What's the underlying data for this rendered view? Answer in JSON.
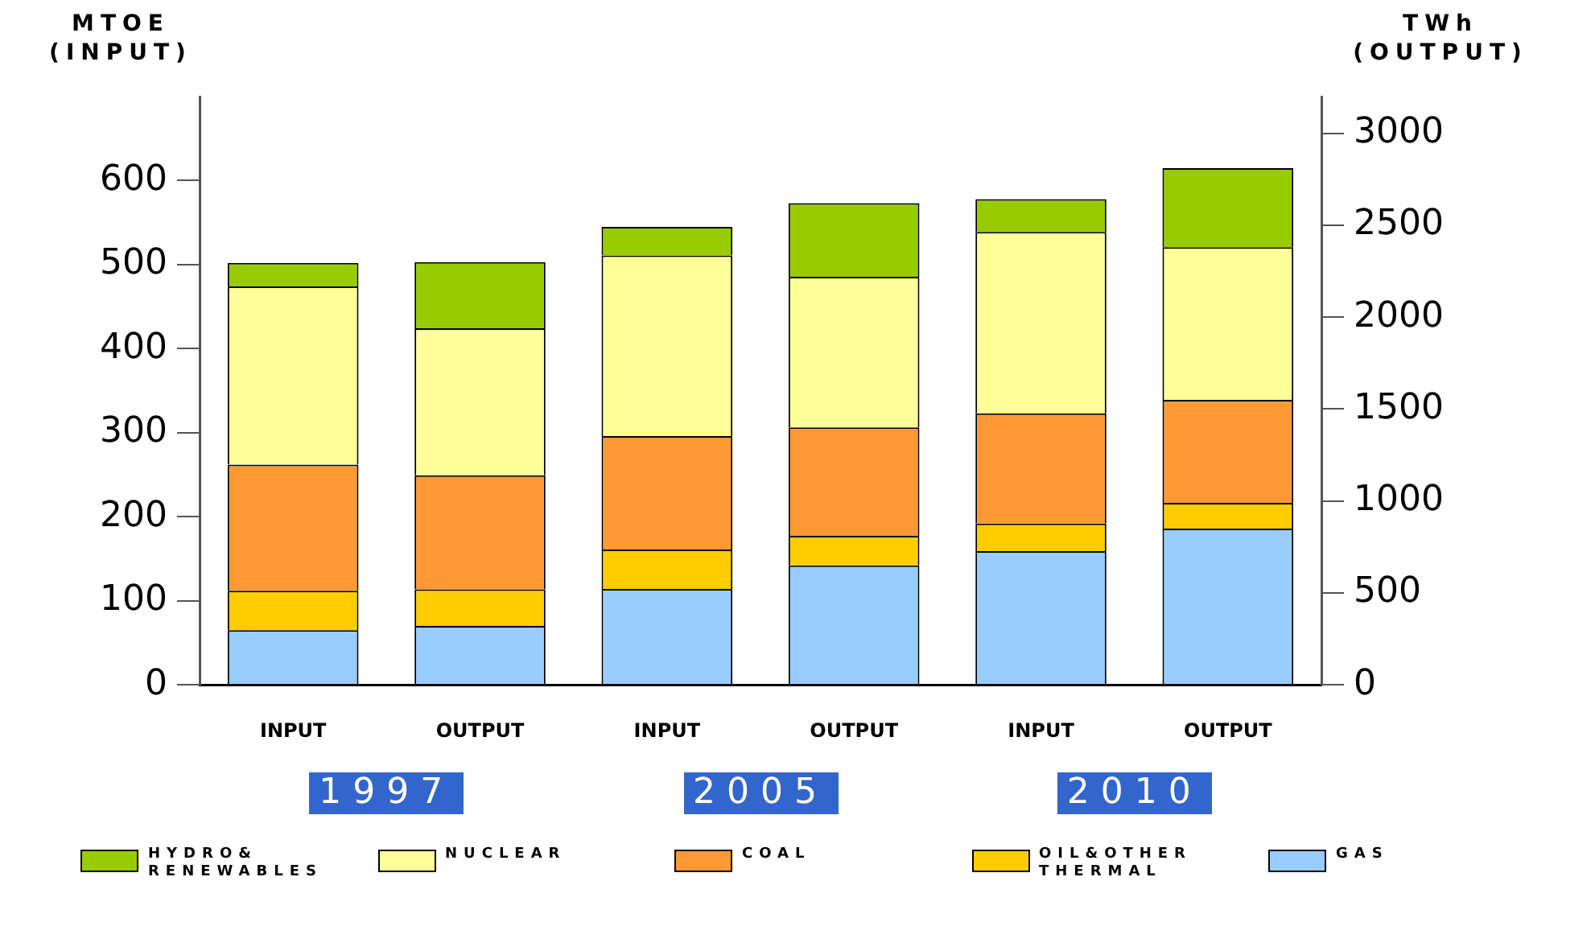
{
  "chart_data": {
    "type": "bar",
    "stacked": true,
    "ylabel": "MTOE (INPUT)",
    "y2label": "TWh (OUTPUT)",
    "categories": [
      "INPUT",
      "OUTPUT",
      "INPUT",
      "OUTPUT",
      "INPUT",
      "OUTPUT"
    ],
    "series": [
      {
        "name": "GAS",
        "color": "#99ccff",
        "values": [
          65,
          null,
          114,
          null,
          159,
          null
        ]
      },
      {
        "name": "OIL&OTHER THERMAL",
        "color": "#ffcc00",
        "values": [
          47,
          null,
          47,
          null,
          33,
          null
        ]
      },
      {
        "name": "COAL",
        "color": "#ff9933",
        "values": [
          150,
          null,
          135,
          null,
          131,
          null
        ]
      },
      {
        "name": "NUCLEAR",
        "color": "#ffff99",
        "values": [
          212,
          null,
          215,
          null,
          216,
          null
        ]
      },
      {
        "name": "HYDRO& RENEWABLES",
        "color": "#99cc00",
        "values": [
          28,
          null,
          34,
          null,
          39,
          null
        ]
      },
      {
        "color": "#99ccff",
        "axis": "y2",
        "values": [
          null,
          320,
          null,
          650,
          null,
          850
        ]
      },
      {
        "color": "#ffcc00",
        "axis": "y2",
        "values": [
          null,
          200,
          null,
          160,
          null,
          140
        ]
      },
      {
        "color": "#ff9933",
        "axis": "y2",
        "values": [
          null,
          620,
          null,
          590,
          null,
          560
        ]
      },
      {
        "color": "#ffff99",
        "axis": "y2",
        "values": [
          null,
          800,
          null,
          820,
          null,
          830
        ]
      },
      {
        "color": "#99cc00",
        "axis": "y2",
        "values": [
          null,
          360,
          null,
          400,
          null,
          430
        ]
      }
    ],
    "ylim": [
      0,
      700
    ],
    "yticks": [
      0,
      100,
      200,
      300,
      400,
      500,
      600
    ],
    "y2lim": [
      0,
      3200
    ],
    "y2ticks": [
      0,
      500,
      1000,
      1500,
      2000,
      2500,
      3000
    ],
    "annotations": [
      "1997",
      "2005",
      "2010"
    ],
    "legend": "bottom"
  }
}
